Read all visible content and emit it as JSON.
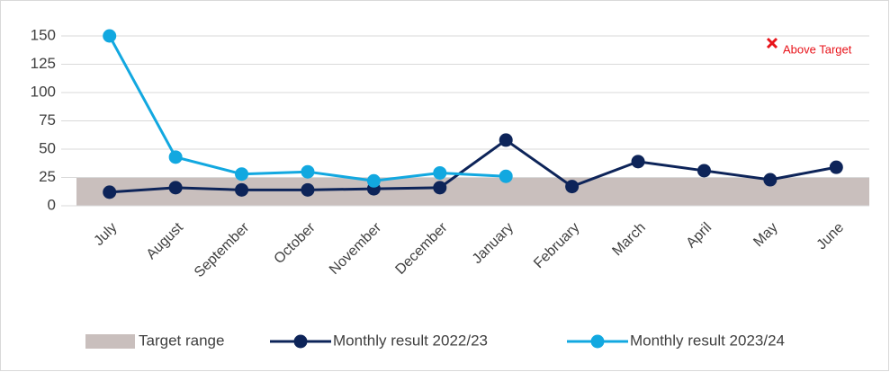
{
  "chart_data": {
    "type": "line",
    "categories": [
      "July",
      "August",
      "September",
      "October",
      "November",
      "December",
      "January",
      "February",
      "March",
      "April",
      "May",
      "June"
    ],
    "series": [
      {
        "name": "Monthly result 2022/23",
        "color": "#0d2459",
        "values": [
          12,
          16,
          14,
          14,
          15,
          16,
          58,
          17,
          39,
          31,
          23,
          34
        ]
      },
      {
        "name": "Monthly result 2023/24",
        "color": "#12a8e0",
        "values": [
          150,
          43,
          28,
          30,
          22,
          29,
          26,
          null,
          null,
          null,
          null,
          null
        ]
      }
    ],
    "target_band": {
      "name": "Target range",
      "color": "#c9bfbd",
      "low": 0,
      "high": 25
    },
    "annotation": {
      "text": "Above Target",
      "color": "#e8141b"
    },
    "ylim": [
      0,
      150
    ],
    "yticks": [
      0,
      25,
      50,
      75,
      100,
      125,
      150
    ],
    "grid": true,
    "legend": "bottom"
  }
}
